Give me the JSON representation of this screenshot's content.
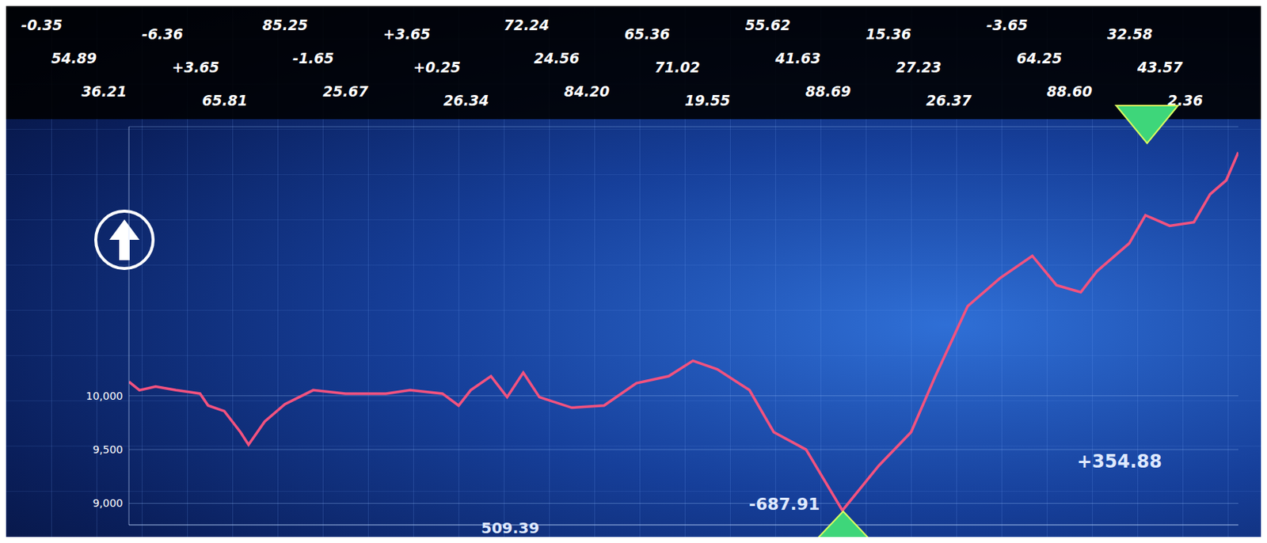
{
  "chart_data": {
    "type": "line",
    "x": [
      0,
      13,
      33,
      58,
      88,
      98,
      118,
      138,
      148,
      168,
      193,
      228,
      268,
      318,
      348,
      388,
      408,
      423,
      448,
      468,
      488,
      508,
      548,
      588,
      628,
      668,
      698,
      728,
      768,
      798,
      838,
      883,
      928,
      968,
      998,
      1018,
      1038,
      1078,
      1118,
      1148,
      1178,
      1198,
      1238,
      1258,
      1288,
      1318,
      1338,
      1358,
      1373
    ],
    "values": [
      10130,
      10052,
      10085,
      10052,
      10020,
      9909,
      9857,
      9662,
      9545,
      9760,
      9922,
      10052,
      10020,
      10020,
      10052,
      10020,
      9909,
      10052,
      10182,
      9987,
      10215,
      9987,
      9889,
      9909,
      10117,
      10182,
      10325,
      10247,
      10052,
      9662,
      9500,
      8934,
      9350,
      9662,
      10182,
      10507,
      10832,
      11092,
      11300,
      11027,
      10962,
      11157,
      11417,
      11677,
      11579,
      11612,
      11872,
      12002,
      12262
    ],
    "color": "#f2527f",
    "xlim": [
      0,
      1373
    ],
    "ylim": [
      8800,
      12500
    ],
    "yticks": [
      {
        "value": 9000,
        "label": "9,000"
      },
      {
        "value": 9500,
        "label": "9,500"
      },
      {
        "value": 10000,
        "label": "10,000"
      }
    ],
    "grid": true,
    "tick_labels": "y",
    "annotations": [
      "-687.91",
      "+354.88",
      "509.39"
    ]
  },
  "ticker": [
    "-0.35",
    "-6.36",
    "85.25",
    "+3.65",
    "72.24",
    "65.36",
    "55.62",
    "15.36",
    "-3.65",
    "32.58",
    "54.89",
    "+3.65",
    "-1.65",
    "+0.25",
    "24.56",
    "71.02",
    "41.63",
    "27.23",
    "64.25",
    "43.57",
    "36.21",
    "65.81",
    "25.67",
    "26.34",
    "84.20",
    "19.55",
    "88.69",
    "26.37",
    "88.60",
    "2.36"
  ]
}
